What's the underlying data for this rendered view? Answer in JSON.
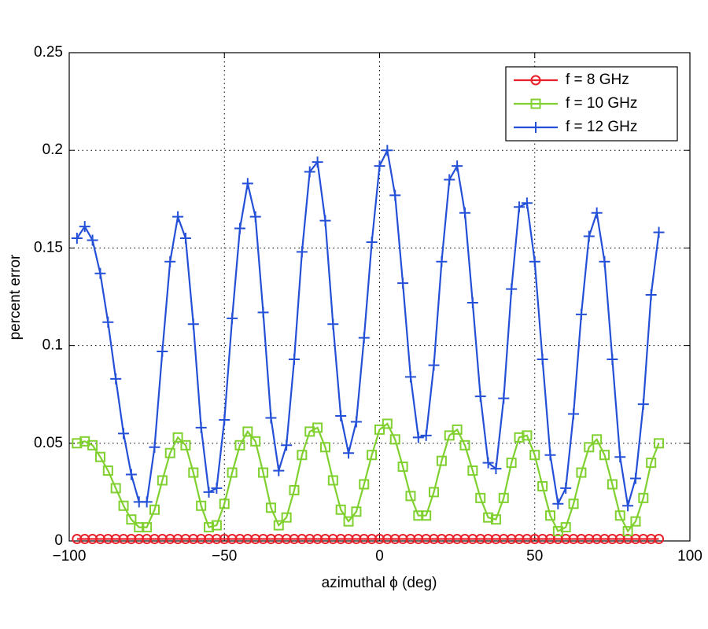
{
  "chart_data": {
    "type": "line",
    "xlabel": "azimuthal ϕ (deg)",
    "ylabel": "percent error",
    "xlim": [
      -100,
      100
    ],
    "xticks": [
      {
        "value": -100,
        "label": "−100"
      },
      {
        "value": -50,
        "label": "−50"
      },
      0,
      50,
      100
    ],
    "ylim": [
      0,
      0.25
    ],
    "yticks": [
      0,
      0.05,
      0.1,
      0.15,
      0.2,
      0.25
    ],
    "grid": true,
    "legend": "upper right",
    "x": [
      -97.5,
      -95,
      -92.5,
      -90,
      -87.5,
      -85,
      -82.5,
      -80,
      -77.5,
      -75,
      -72.5,
      -70,
      -67.5,
      -65,
      -62.5,
      -60,
      -57.5,
      -55,
      -52.5,
      -50,
      -47.5,
      -45,
      -42.5,
      -40,
      -37.5,
      -35,
      -32.5,
      -30,
      -27.5,
      -25,
      -22.5,
      -20,
      -17.5,
      -15,
      -12.5,
      -10,
      -7.5,
      -5,
      -2.5,
      0,
      2.5,
      5,
      7.5,
      10,
      12.5,
      15,
      17.5,
      20,
      22.5,
      25,
      27.5,
      30,
      32.5,
      35,
      37.5,
      40,
      42.5,
      45,
      47.5,
      50,
      52.5,
      55,
      57.5,
      60,
      62.5,
      65,
      67.5,
      70,
      72.5,
      75,
      77.5,
      80,
      82.5,
      85,
      87.5,
      90
    ],
    "series": [
      {
        "name": "f = 8 GHz",
        "color": "#e8202a",
        "marker": "circle",
        "values": [
          0.001,
          0.001,
          0.001,
          0.001,
          0.001,
          0.001,
          0.001,
          0.001,
          0.001,
          0.001,
          0.001,
          0.001,
          0.001,
          0.001,
          0.001,
          0.001,
          0.001,
          0.001,
          0.001,
          0.001,
          0.001,
          0.001,
          0.001,
          0.001,
          0.001,
          0.001,
          0.001,
          0.001,
          0.001,
          0.001,
          0.001,
          0.001,
          0.001,
          0.001,
          0.001,
          0.001,
          0.001,
          0.001,
          0.001,
          0.001,
          0.001,
          0.001,
          0.001,
          0.001,
          0.001,
          0.001,
          0.001,
          0.001,
          0.001,
          0.001,
          0.001,
          0.001,
          0.001,
          0.001,
          0.001,
          0.001,
          0.001,
          0.001,
          0.001,
          0.001,
          0.001,
          0.001,
          0.001,
          0.001,
          0.001,
          0.001,
          0.001,
          0.001,
          0.001,
          0.001,
          0.001,
          0.001,
          0.001,
          0.001,
          0.001,
          0.001
        ]
      },
      {
        "name": "f = 10 GHz",
        "color": "#80d030",
        "marker": "square",
        "values": [
          0.05,
          0.051,
          0.049,
          0.043,
          0.036,
          0.027,
          0.018,
          0.011,
          0.007,
          0.007,
          0.016,
          0.031,
          0.045,
          0.053,
          0.049,
          0.035,
          0.018,
          0.007,
          0.008,
          0.019,
          0.035,
          0.049,
          0.056,
          0.051,
          0.035,
          0.017,
          0.008,
          0.012,
          0.026,
          0.044,
          0.056,
          0.058,
          0.048,
          0.031,
          0.016,
          0.01,
          0.015,
          0.029,
          0.044,
          0.057,
          0.06,
          0.052,
          0.038,
          0.023,
          0.013,
          0.013,
          0.025,
          0.041,
          0.054,
          0.057,
          0.049,
          0.036,
          0.022,
          0.012,
          0.011,
          0.022,
          0.04,
          0.053,
          0.054,
          0.044,
          0.028,
          0.013,
          0.005,
          0.007,
          0.019,
          0.035,
          0.048,
          0.052,
          0.044,
          0.029,
          0.013,
          0.005,
          0.01,
          0.022,
          0.04,
          0.05
        ]
      },
      {
        "name": "f = 12 GHz",
        "color": "#2450d8",
        "marker": "plus",
        "values": [
          0.155,
          0.161,
          0.154,
          0.137,
          0.112,
          0.083,
          0.055,
          0.034,
          0.02,
          0.02,
          0.048,
          0.097,
          0.143,
          0.166,
          0.155,
          0.111,
          0.058,
          0.025,
          0.027,
          0.062,
          0.114,
          0.16,
          0.183,
          0.166,
          0.117,
          0.063,
          0.036,
          0.049,
          0.093,
          0.148,
          0.189,
          0.194,
          0.164,
          0.111,
          0.064,
          0.045,
          0.061,
          0.104,
          0.153,
          0.192,
          0.2,
          0.177,
          0.132,
          0.084,
          0.053,
          0.054,
          0.09,
          0.143,
          0.185,
          0.192,
          0.168,
          0.122,
          0.074,
          0.04,
          0.037,
          0.073,
          0.129,
          0.171,
          0.173,
          0.143,
          0.093,
          0.044,
          0.019,
          0.027,
          0.065,
          0.116,
          0.156,
          0.168,
          0.143,
          0.093,
          0.043,
          0.018,
          0.032,
          0.07,
          0.126,
          0.158
        ]
      }
    ]
  }
}
